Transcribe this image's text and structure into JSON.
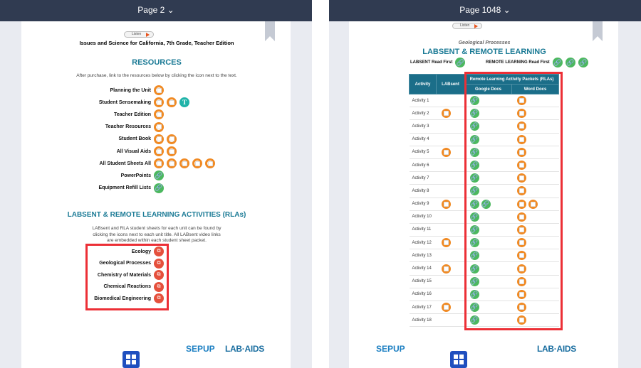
{
  "left": {
    "page_label": "Page 2",
    "listen": "Listen",
    "book_title": "Issues and Science for California, 7th Grade, Teacher Edition",
    "resources_heading": "RESOURCES",
    "resources_intro": "After purchase, link to the resources below by clicking the icon next to the text.",
    "resources": [
      {
        "label": "Planning the Unit",
        "icons": [
          "o"
        ]
      },
      {
        "label": "Student Sensemaking",
        "icons": [
          "o",
          "o",
          "t"
        ]
      },
      {
        "label": "Teacher Edition",
        "icons": [
          "o"
        ]
      },
      {
        "label": "Teacher Resources",
        "icons": [
          "o"
        ]
      },
      {
        "label": "Student Book",
        "icons": [
          "o",
          "o"
        ]
      },
      {
        "label": "All Visual Aids",
        "icons": [
          "o",
          "o"
        ]
      },
      {
        "label": "All Student Sheets All",
        "icons": [
          "o",
          "o",
          "o",
          "o",
          "o"
        ]
      },
      {
        "label": "PowerPoints",
        "icons": [
          "g"
        ]
      },
      {
        "label": "Equipment Refill Lists",
        "icons": [
          "g"
        ]
      }
    ],
    "rla_heading": "LABSENT & REMOTE LEARNING ACTIVITIES (RLAs)",
    "rla_intro": [
      "LABsent and RLA student sheets for each unit can be found by",
      "clicking the icons next to each unit title. All LABsent video links",
      "are embedded within each student sheet packet."
    ],
    "units": [
      "Ecology",
      "Geological Processes",
      "Chemistry of Materials",
      "Chemical Reactions",
      "Biomedical Engineering"
    ],
    "logos": [
      "SEPUP",
      "LAB-AIDS"
    ]
  },
  "right": {
    "page_label": "Page 1048",
    "listen": "Listen",
    "unit": "Geological Processes",
    "heading": "LABSENT & REMOTE LEARNING",
    "labsent_read_first": "LABSENT Read First",
    "remote_read_first": "REMOTE LEARNING Read First",
    "table": {
      "group_header": "Remote Learning Activity Packets (RLAs)",
      "columns": [
        "Activity",
        "LABsent",
        "Google Docs",
        "Word Docs"
      ],
      "rows": [
        {
          "activity": "Activity 1",
          "labsent": 0,
          "google": 1,
          "word": 1
        },
        {
          "activity": "Activity 2",
          "labsent": 1,
          "google": 1,
          "word": 1
        },
        {
          "activity": "Activity 3",
          "labsent": 0,
          "google": 1,
          "word": 1
        },
        {
          "activity": "Activity 4",
          "labsent": 0,
          "google": 1,
          "word": 1
        },
        {
          "activity": "Activity 5",
          "labsent": 1,
          "google": 1,
          "word": 1
        },
        {
          "activity": "Activity 6",
          "labsent": 0,
          "google": 1,
          "word": 1
        },
        {
          "activity": "Activity 7",
          "labsent": 0,
          "google": 1,
          "word": 1
        },
        {
          "activity": "Activity 8",
          "labsent": 0,
          "google": 1,
          "word": 1
        },
        {
          "activity": "Activity 9",
          "labsent": 1,
          "google": 2,
          "word": 2
        },
        {
          "activity": "Activity 10",
          "labsent": 0,
          "google": 1,
          "word": 1
        },
        {
          "activity": "Activity 11",
          "labsent": 0,
          "google": 1,
          "word": 1
        },
        {
          "activity": "Activity 12",
          "labsent": 1,
          "google": 1,
          "word": 1
        },
        {
          "activity": "Activity 13",
          "labsent": 0,
          "google": 1,
          "word": 1
        },
        {
          "activity": "Activity 14",
          "labsent": 1,
          "google": 1,
          "word": 1
        },
        {
          "activity": "Activity 15",
          "labsent": 0,
          "google": 1,
          "word": 1
        },
        {
          "activity": "Activity 16",
          "labsent": 0,
          "google": 1,
          "word": 1
        },
        {
          "activity": "Activity 17",
          "labsent": 1,
          "google": 1,
          "word": 1
        },
        {
          "activity": "Activity 18",
          "labsent": 0,
          "google": 1,
          "word": 1
        }
      ]
    },
    "logos": [
      "SEPUP",
      "LAB-AIDS"
    ]
  },
  "colors": {
    "header_bar": "#303b51",
    "teal_heading": "#1a7a95",
    "orange_icon": "#f08a24",
    "green_link": "#4cb85f",
    "red_highlight": "#ec2f36",
    "table_header": "#1b6e89"
  }
}
